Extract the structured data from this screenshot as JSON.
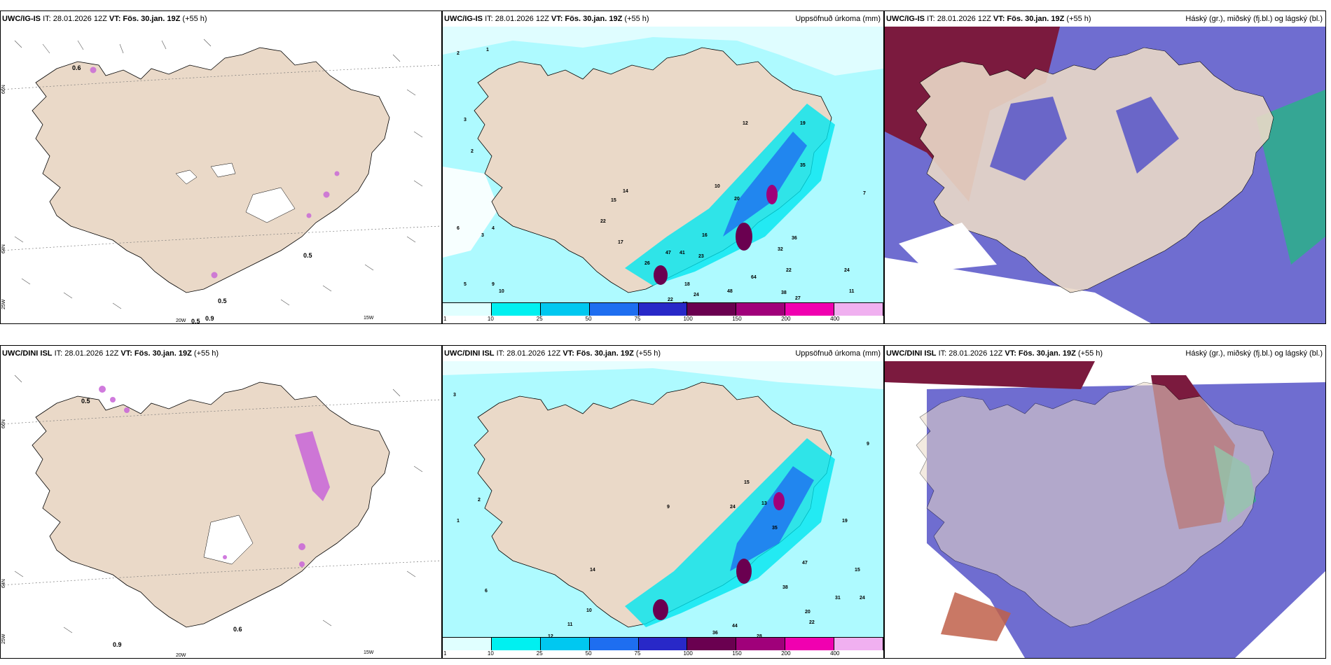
{
  "panels": {
    "p1": {
      "model": "UWC/IG-IS",
      "it": "IT: 28.01.2026 12Z",
      "vt": "VT: Fös. 30.jan. 19Z",
      "plus": "(+55 h)",
      "right": ""
    },
    "p2": {
      "model": "UWC/IG-IS",
      "it": "IT: 28.01.2026 12Z",
      "vt": "VT: Fös. 30.jan. 19Z",
      "plus": "(+55 h)",
      "right": "Uppsöfnuð úrkoma (mm)"
    },
    "p3": {
      "model": "UWC/IG-IS",
      "it": "IT: 28.01.2026 12Z",
      "vt": "VT: Fös. 30.jan. 19Z",
      "plus": "(+55 h)",
      "right": "Háský (gr.), miðský (fj.bl.) og lágský (bl.)"
    },
    "p4": {
      "model": "UWC/DINI ISL",
      "it": "IT: 28.01.2026 12Z",
      "vt": "VT: Fös. 30.jan. 19Z",
      "plus": "(+55 h)",
      "right": ""
    },
    "p5": {
      "model": "UWC/DINI ISL",
      "it": "IT: 28.01.2026 12Z",
      "vt": "VT: Fös. 30.jan. 19Z",
      "plus": "(+55 h)",
      "right": "Uppsöfnuð úrkoma (mm)"
    },
    "p6": {
      "model": "UWC/DINI ISL",
      "it": "IT: 28.01.2026 12Z",
      "vt": "VT: Fös. 30.jan. 19Z",
      "plus": "(+55 h)",
      "right": "Háský (gr.), miðský (fj.bl.) og lágský (bl.)"
    }
  },
  "axis": {
    "lat66": "66N",
    "lat64": "64N",
    "lon25": "25W",
    "lon20": "20W",
    "lon15": "15W"
  },
  "wind_labels_top": [
    "0.6",
    "0.5",
    "0.5",
    "0.5",
    "0.9"
  ],
  "wind_labels_bottom": [
    "0.5",
    "0.9",
    "0.6"
  ],
  "precip_top": [
    "2",
    "1",
    "3",
    "6",
    "3",
    "5",
    "2",
    "4",
    "8",
    "9",
    "10",
    "14",
    "15",
    "22",
    "17",
    "47",
    "41",
    "18",
    "22",
    "26",
    "24",
    "25",
    "20",
    "35",
    "32",
    "36",
    "22",
    "27",
    "38",
    "48",
    "64",
    "28",
    "11",
    "24",
    "7",
    "16",
    "23",
    "12",
    "10",
    "19"
  ],
  "precip_bottom": [
    "3",
    "1",
    "2",
    "6",
    "12",
    "14",
    "11",
    "10",
    "9",
    "15",
    "24",
    "13",
    "35",
    "47",
    "38",
    "20",
    "22",
    "31",
    "28",
    "44",
    "36",
    "16",
    "19",
    "15",
    "24",
    "9"
  ],
  "colorbar": {
    "ticks": [
      "1",
      "10",
      "25",
      "50",
      "75",
      "100",
      "150",
      "200",
      "400"
    ],
    "colors": [
      "#e0ffff",
      "#00f0f0",
      "#00c8f0",
      "#1e6ef0",
      "#2828c8",
      "#6a0050",
      "#a0007a",
      "#f000b0",
      "#f0b0f0"
    ]
  },
  "colors": {
    "land": "#ead9c8",
    "sea": "#ffffff",
    "precip_light": "#aefaff",
    "precip_mid": "#00e6f0",
    "cloud_high": "#7b1a3e",
    "cloud_mid": "#5654c8",
    "cloud_low": "#2bb08a",
    "snow": "#c864d8"
  }
}
